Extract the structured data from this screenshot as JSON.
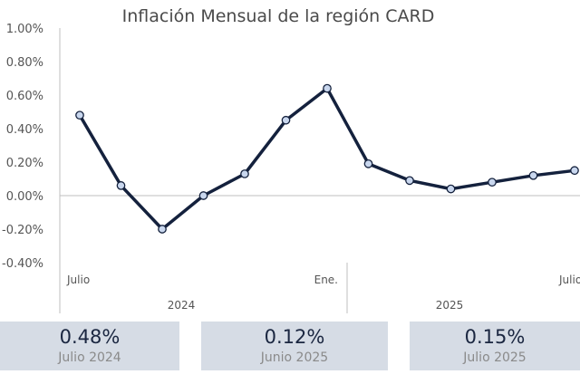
{
  "chart_data": {
    "type": "line",
    "title": "Inflación Mensual de la región CARD",
    "y_ticks": [
      "1.00%",
      "0.80%",
      "0.60%",
      "0.40%",
      "0.20%",
      "0.00%",
      "-0.20%",
      "-0.40%"
    ],
    "ylim": [
      -0.4,
      1.0
    ],
    "x_labels": [
      "Julio",
      "",
      "",
      "",
      "",
      "",
      "Ene.",
      "",
      "",
      "",
      "",
      "",
      "Julio"
    ],
    "groups": [
      "2024",
      "2025"
    ],
    "values": [
      0.48,
      0.06,
      -0.2,
      0.0,
      0.13,
      0.45,
      0.64,
      0.19,
      0.09,
      0.04,
      0.08,
      0.12,
      0.15
    ],
    "colors": {
      "line": "#14213d",
      "marker_fill": "#c9d7ee",
      "axis": "#bfbfbf"
    },
    "grid": false
  },
  "kpis": [
    {
      "value": "0.48%",
      "label": "Julio 2024"
    },
    {
      "value": "0.12%",
      "label": "Junio 2025"
    },
    {
      "value": "0.15%",
      "label": "Julio 2025"
    }
  ]
}
